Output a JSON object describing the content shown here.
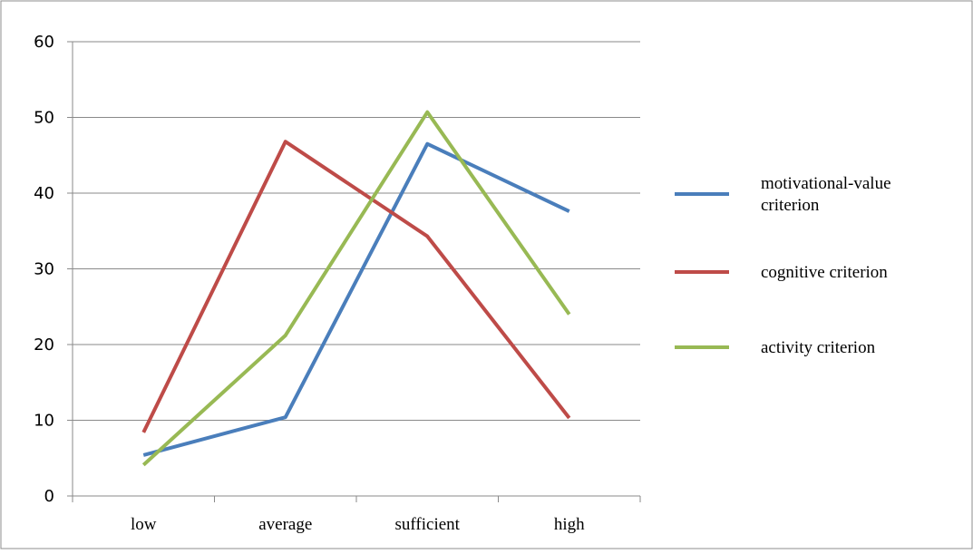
{
  "chart_data": {
    "type": "line",
    "categories": [
      "low",
      "average",
      "sufficient",
      "high"
    ],
    "series": [
      {
        "name": "motivational-value criterion",
        "name_lines": [
          "motivational-value",
          "criterion"
        ],
        "color": "#4a7ebb",
        "values": [
          5.4,
          10.4,
          46.5,
          37.6
        ]
      },
      {
        "name": "cognitive criterion",
        "name_lines": [
          "cognitive criterion"
        ],
        "color": "#be4b48",
        "values": [
          8.4,
          46.8,
          34.3,
          10.3
        ]
      },
      {
        "name": "activity criterion",
        "name_lines": [
          "activity criterion"
        ],
        "color": "#98b954",
        "values": [
          4.1,
          21.2,
          50.7,
          24.0
        ]
      }
    ],
    "ylim": [
      0,
      60
    ],
    "yticks": [
      "0",
      "10",
      "20",
      "30",
      "40",
      "50",
      "60"
    ],
    "grid": true,
    "legend_position": "right"
  }
}
